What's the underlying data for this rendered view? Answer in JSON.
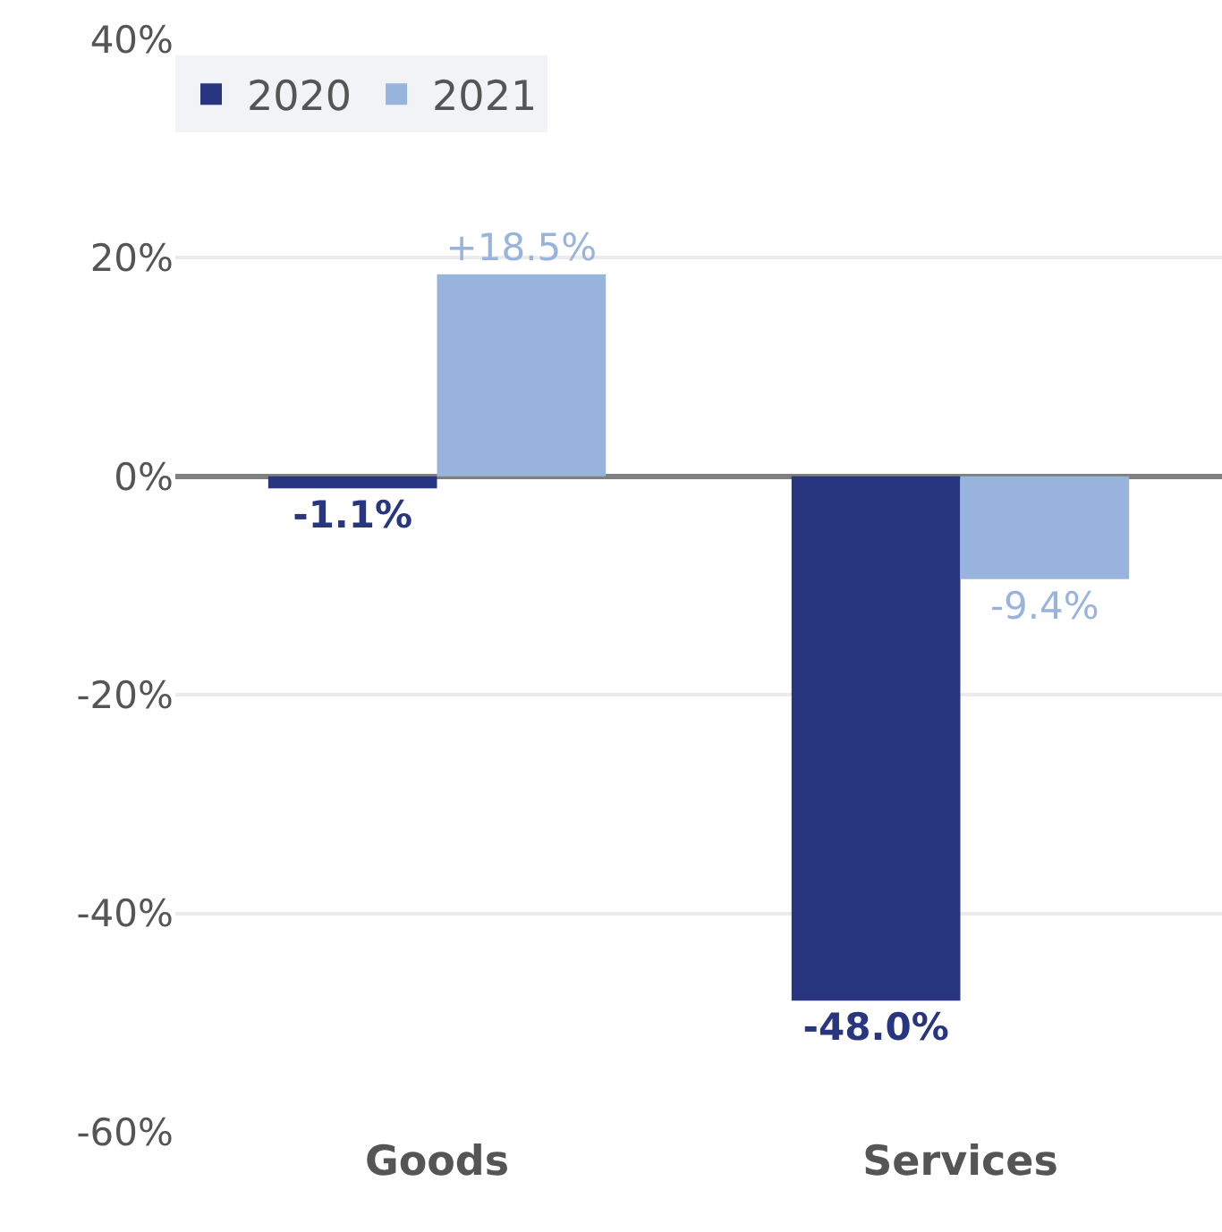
{
  "chart_data": {
    "type": "bar",
    "categories": [
      "Goods",
      "Services"
    ],
    "series": [
      {
        "name": "2020",
        "color": "#27367e",
        "values": [
          -1.1,
          -48.0
        ],
        "value_labels": [
          "-1.1%",
          "-48.0%"
        ]
      },
      {
        "name": "2021",
        "color": "#98b4dc",
        "values": [
          18.5,
          -9.4
        ],
        "value_labels": [
          "+18.5%",
          "-9.4%"
        ]
      }
    ],
    "ylim": [
      -60,
      40
    ],
    "yticks": [
      {
        "value": -60,
        "label": "-60%"
      },
      {
        "value": -40,
        "label": "-40%"
      },
      {
        "value": -20,
        "label": "-20%"
      },
      {
        "value": 0,
        "label": "0%"
      },
      {
        "value": 20,
        "label": "20%"
      },
      {
        "value": 40,
        "label": "40%"
      }
    ],
    "grid": "y",
    "legend": "top left"
  }
}
